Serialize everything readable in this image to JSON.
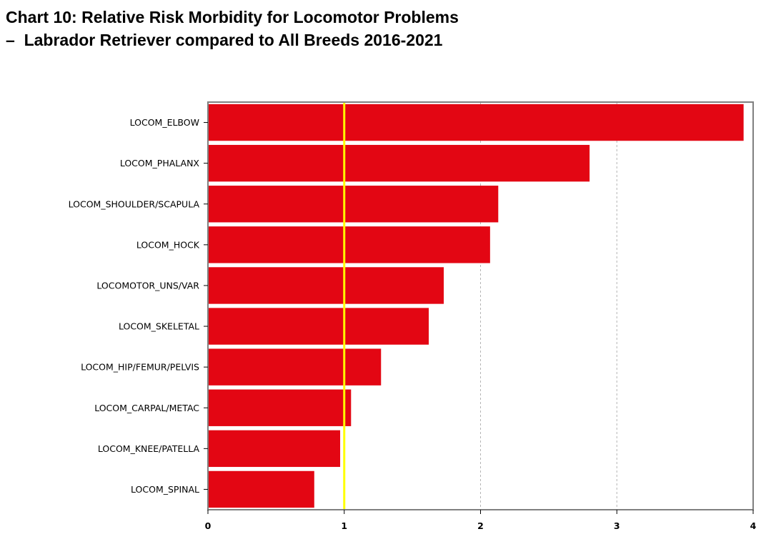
{
  "title_line1": "Chart 10: Relative Risk Morbidity for Locomotor Problems",
  "title_line2": "–  Labrador Retriever compared to All Breeds 2016-2021",
  "colors": {
    "bar": "#e30613",
    "reference_line": "#ffff00",
    "grid": "#b4b4b4",
    "frame": "#808080"
  },
  "chart_data": {
    "type": "bar",
    "orientation": "horizontal",
    "title": "Chart 10: Relative Risk Morbidity for Locomotor Problems – Labrador Retriever compared to All Breeds 2016-2021",
    "categories": [
      "LOCOM_ELBOW",
      "LOCOM_PHALANX",
      "LOCOM_SHOULDER/SCAPULA",
      "LOCOM_HOCK",
      "LOCOMOTOR_UNS/VAR",
      "LOCOM_SKELETAL",
      "LOCOM_HIP/FEMUR/PELVIS",
      "LOCOM_CARPAL/METAC",
      "LOCOM_KNEE/PATELLA",
      "LOCOM_SPINAL"
    ],
    "values": [
      3.93,
      2.8,
      2.13,
      2.07,
      1.73,
      1.62,
      1.27,
      1.05,
      0.97,
      0.78
    ],
    "xlim": [
      0,
      4
    ],
    "xticks": [
      0,
      1,
      2,
      3,
      4
    ],
    "reference_line": 1,
    "grid": "vertical dashed",
    "xlabel": "",
    "ylabel": ""
  }
}
